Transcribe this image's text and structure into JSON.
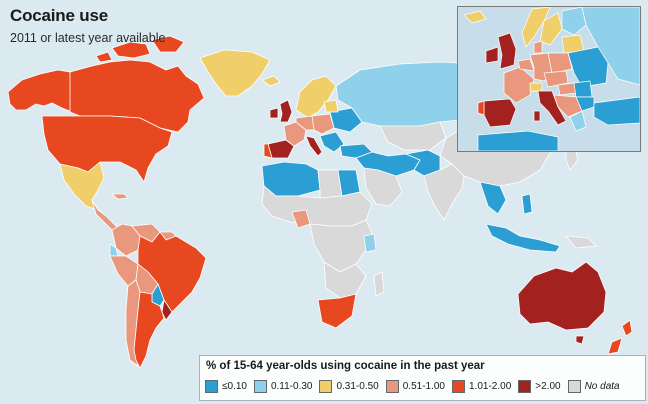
{
  "title": "Cocaine use",
  "subtitle": "2011 or latest year available",
  "legend": {
    "title": "% of 15-64 year-olds using cocaine in the past year",
    "items": [
      {
        "label": "≤0.10",
        "color": "#2b9fd3"
      },
      {
        "label": "0.11-0.30",
        "color": "#8fd0ea"
      },
      {
        "label": "0.31-0.50",
        "color": "#f0cf6a"
      },
      {
        "label": "0.51-1.00",
        "color": "#e9977d"
      },
      {
        "label": "1.01-2.00",
        "color": "#e8481f"
      },
      {
        "label": ">2.00",
        "color": "#a3211e"
      },
      {
        "label": "No data",
        "color": "#d9d9d9"
      }
    ]
  },
  "colors": {
    "ocean": "#dbe9f1",
    "border": "#ffffff",
    "very_low": "#2b9fd3",
    "low": "#8fd0ea",
    "mid_low": "#f0cf6a",
    "mid": "#e9977d",
    "high": "#e8481f",
    "very_high": "#a3211e",
    "no_data": "#d9d9d9"
  },
  "regions": [
    {
      "name": "alaska",
      "band": "high"
    },
    {
      "name": "canada",
      "band": "high"
    },
    {
      "name": "usa",
      "band": "high"
    },
    {
      "name": "greenland",
      "band": "mid_low"
    },
    {
      "name": "mexico",
      "band": "mid_low"
    },
    {
      "name": "central-america",
      "band": "mid"
    },
    {
      "name": "colombia",
      "band": "mid"
    },
    {
      "name": "venezuela",
      "band": "mid"
    },
    {
      "name": "brazil",
      "band": "high"
    },
    {
      "name": "peru",
      "band": "mid"
    },
    {
      "name": "bolivia",
      "band": "mid"
    },
    {
      "name": "paraguay",
      "band": "very_low"
    },
    {
      "name": "chile",
      "band": "mid"
    },
    {
      "name": "argentina",
      "band": "high"
    },
    {
      "name": "uruguay",
      "band": "very_high"
    },
    {
      "name": "uk",
      "band": "very_high"
    },
    {
      "name": "ireland",
      "band": "very_high"
    },
    {
      "name": "iberia",
      "band": "very_high"
    },
    {
      "name": "italy",
      "band": "very_high"
    },
    {
      "name": "france",
      "band": "mid"
    },
    {
      "name": "scandinavia",
      "band": "mid_low"
    },
    {
      "name": "russia",
      "band": "low"
    },
    {
      "name": "north-africa",
      "band": "very_low"
    },
    {
      "name": "egypt",
      "band": "very_low"
    },
    {
      "name": "middle-east",
      "band": "very_low"
    },
    {
      "name": "nigeria",
      "band": "mid"
    },
    {
      "name": "kenya",
      "band": "low"
    },
    {
      "name": "south-africa",
      "band": "high"
    },
    {
      "name": "southeast-asia",
      "band": "very_low"
    },
    {
      "name": "australia",
      "band": "very_high"
    },
    {
      "name": "new-zealand",
      "band": "high"
    }
  ]
}
